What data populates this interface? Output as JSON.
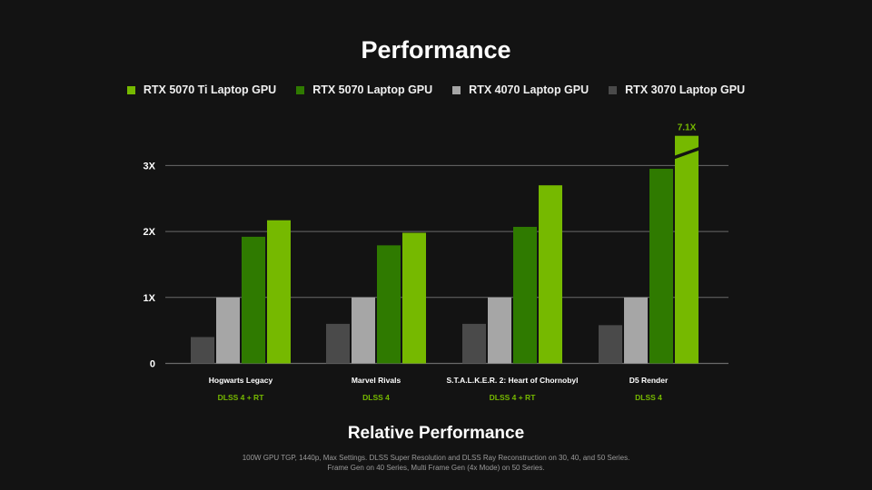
{
  "colors": {
    "background": "#131313",
    "grid": "#6a6a6a",
    "tick_text": "#ffffff",
    "category_text": "#ffffff",
    "subcategory_text": "#76b900",
    "annotation": "#76b900"
  },
  "footer": {
    "line1": "100W GPU TGP, 1440p, Max Settings. DLSS Super Resolution and DLSS Ray Reconstruction on 30, 40, and 50 Series.",
    "line2": "Frame Gen on 40 Series, Multi Frame Gen (4x Mode) on 50 Series."
  },
  "chart_data": {
    "type": "bar",
    "title": "Performance",
    "ylabel": "Relative Performance",
    "categories": [
      "Hogwarts Legacy",
      "Marvel Rivals",
      "S.T.A.L.K.E.R. 2: Heart of Chornobyl",
      "D5 Render"
    ],
    "category_sublabels": [
      "DLSS 4 + RT",
      "DLSS 4",
      "DLSS 4 + RT",
      "DLSS 4"
    ],
    "yticks": [
      {
        "value": 0,
        "label": "0"
      },
      {
        "value": 1,
        "label": "1X"
      },
      {
        "value": 2,
        "label": "2X"
      },
      {
        "value": 3,
        "label": "3X"
      }
    ],
    "ylim": [
      0,
      3.5
    ],
    "grid": true,
    "legend_position": "top",
    "series": [
      {
        "name": "RTX 3070 Laptop GPU",
        "color": "#4a4a4a",
        "values": [
          0.4,
          0.6,
          0.6,
          0.58
        ]
      },
      {
        "name": "RTX 4070 Laptop GPU",
        "color": "#a6a6a6",
        "values": [
          1.0,
          1.0,
          1.0,
          1.0
        ]
      },
      {
        "name": "RTX 5070 Laptop GPU",
        "color": "#2f7a00",
        "values": [
          1.92,
          1.79,
          2.07,
          2.95
        ]
      },
      {
        "name": "RTX 5070 Ti Laptop GPU",
        "color": "#76b900",
        "values": [
          2.17,
          1.98,
          2.7,
          3.45
        ]
      }
    ],
    "legend_order": [
      "RTX 5070 Ti Laptop GPU",
      "RTX 5070 Laptop GPU",
      "RTX 4070 Laptop GPU",
      "RTX 3070 Laptop GPU"
    ],
    "annotations": [
      {
        "category": "D5 Render",
        "series": "RTX 5070 Ti Laptop GPU",
        "text": "7.1X",
        "axis_break": true
      }
    ]
  }
}
